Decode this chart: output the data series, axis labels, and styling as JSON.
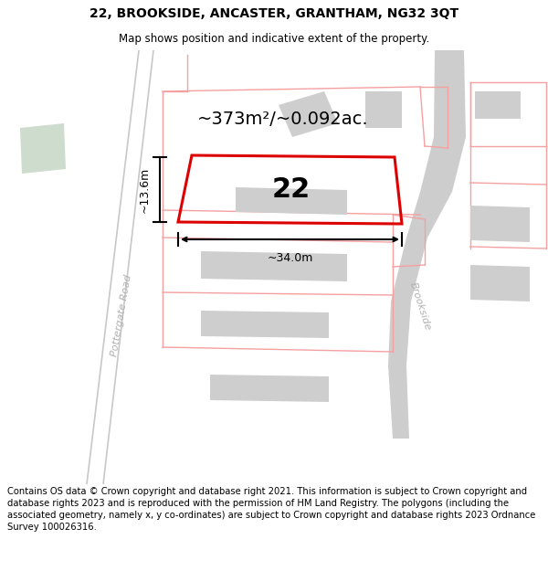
{
  "title": "22, BROOKSIDE, ANCASTER, GRANTHAM, NG32 3QT",
  "subtitle": "Map shows position and indicative extent of the property.",
  "footer": "Contains OS data © Crown copyright and database right 2021. This information is subject to Crown copyright and database rights 2023 and is reproduced with the permission of HM Land Registry. The polygons (including the associated geometry, namely x, y co-ordinates) are subject to Crown copyright and database rights 2023 Ordnance Survey 100026316.",
  "area_label": "~373m²/~0.092ac.",
  "number_label": "22",
  "dim_width": "~34.0m",
  "dim_height": "~13.6m",
  "road_label_left": "Pottergate Road",
  "road_label_right": "Brookside",
  "map_bg": "#ffffff",
  "red_plot_color": "#dd0000",
  "light_red_boundary": "#f5a0a0",
  "building_fill": "#cecece",
  "green_patch": "#cddccd",
  "road_gray": "#c8c8c8",
  "label_gray": "#b0b0b0",
  "title_fontsize": 10,
  "subtitle_fontsize": 8.5,
  "footer_fontsize": 7.2,
  "area_fontsize": 14,
  "number_fontsize": 22
}
